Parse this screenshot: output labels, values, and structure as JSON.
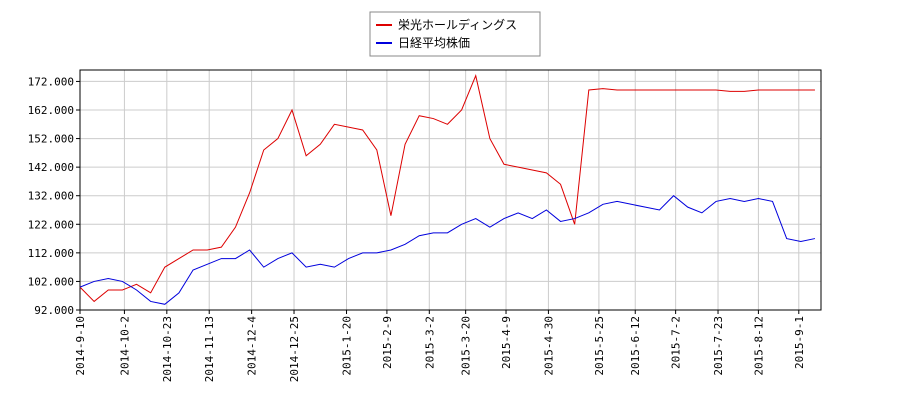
{
  "chart_data": {
    "type": "line",
    "x": [
      "2014-9-10",
      "2014-9-17",
      "2014-9-24",
      "2014-10-1",
      "2014-10-8",
      "2014-10-15",
      "2014-10-22",
      "2014-10-29",
      "2014-11-5",
      "2014-11-12",
      "2014-11-19",
      "2014-11-26",
      "2014-12-3",
      "2014-12-10",
      "2014-12-17",
      "2014-12-24",
      "2014-12-31",
      "2015-1-7",
      "2015-1-14",
      "2015-1-21",
      "2015-1-28",
      "2015-2-4",
      "2015-2-11",
      "2015-2-18",
      "2015-2-25",
      "2015-3-4",
      "2015-3-11",
      "2015-3-18",
      "2015-3-25",
      "2015-4-1",
      "2015-4-8",
      "2015-4-15",
      "2015-4-22",
      "2015-4-29",
      "2015-5-6",
      "2015-5-13",
      "2015-5-20",
      "2015-5-27",
      "2015-6-3",
      "2015-6-10",
      "2015-6-17",
      "2015-6-24",
      "2015-7-1",
      "2015-7-8",
      "2015-7-15",
      "2015-7-22",
      "2015-7-29",
      "2015-8-5",
      "2015-8-12",
      "2015-8-19",
      "2015-8-26",
      "2015-9-2",
      "2015-9-9"
    ],
    "series": [
      {
        "name": "栄光ホールディングス",
        "color": "#dd0000",
        "values": [
          100,
          95,
          99,
          99,
          101,
          98,
          107,
          110,
          113,
          113,
          114,
          121,
          133,
          148,
          152,
          162,
          146,
          150,
          157,
          156,
          155,
          148,
          125,
          150,
          160,
          159,
          157,
          162,
          174,
          152,
          143,
          142,
          141,
          140,
          136,
          122,
          169,
          169.5,
          169,
          169,
          169,
          169,
          169,
          169,
          169,
          169,
          168.5,
          168.5,
          169,
          169,
          169,
          169,
          169
        ]
      },
      {
        "name": "日経平均株価",
        "color": "#0000dd",
        "values": [
          100,
          102,
          103,
          102,
          99,
          95,
          94,
          98,
          106,
          108,
          110,
          110,
          113,
          107,
          110,
          112,
          107,
          108,
          107,
          110,
          112,
          112,
          113,
          115,
          118,
          119,
          119,
          122,
          124,
          121,
          124,
          126,
          124,
          127,
          123,
          124,
          126,
          129,
          130,
          129,
          128,
          127,
          132,
          128,
          126,
          130,
          131,
          130,
          131,
          130,
          117,
          116,
          117
        ]
      }
    ],
    "xlim": [
      "2014-9-10",
      "2015-9-12"
    ],
    "xticks": [
      "2014-9-10",
      "2014-10-2",
      "2014-10-23",
      "2014-11-13",
      "2014-12-4",
      "2014-12-25",
      "2015-1-20",
      "2015-2-9",
      "2015-3-2",
      "2015-3-20",
      "2015-4-9",
      "2015-4-30",
      "2015-5-25",
      "2015-6-12",
      "2015-7-2",
      "2015-7-23",
      "2015-8-12",
      "2015-9-1"
    ],
    "ylim": [
      92,
      176
    ],
    "yticks": [
      {
        "value": 92,
        "label": "92.000"
      },
      {
        "value": 102,
        "label": "102.000"
      },
      {
        "value": 112,
        "label": "112.000"
      },
      {
        "value": 122,
        "label": "122.000"
      },
      {
        "value": 132,
        "label": "132.000"
      },
      {
        "value": 142,
        "label": "142.000"
      },
      {
        "value": 152,
        "label": "152.000"
      },
      {
        "value": 162,
        "label": "162.000"
      },
      {
        "value": 172,
        "label": "172.000"
      }
    ],
    "grid": true,
    "legend": "top"
  }
}
